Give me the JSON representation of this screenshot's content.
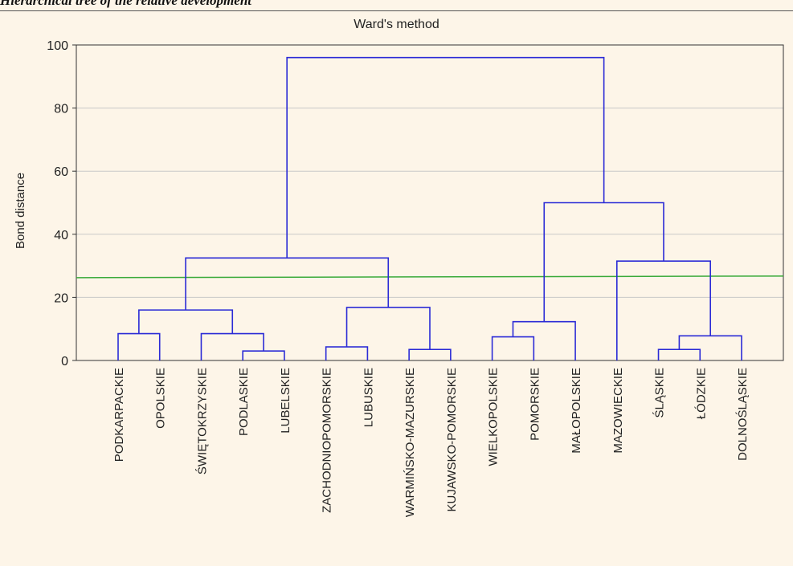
{
  "caption": "Hierarchical tree of the relative development",
  "chart_data": {
    "type": "dendrogram",
    "title": "Ward's method",
    "xlabel": "",
    "ylabel": "Bond distance",
    "ylim": [
      0,
      100
    ],
    "yticks": [
      0,
      20,
      40,
      60,
      80,
      100
    ],
    "grid": true,
    "cut_line": 26.5,
    "line_color": "#2b2bd6",
    "cut_color": "#3aaa3a",
    "leaves": [
      "PODKARPACKIE",
      "OPOLSKIE",
      "ŚWIĘTOKRZYSKIE",
      "PODLASKIE",
      "LUBELSKIE",
      "ZACHODNIOPOMORSKIE",
      "LUBUSKIE",
      "WARMIŃSKO-MAZURSKIE",
      "KUJAWSKO-POMORSKIE",
      "WIELKOPOLSKIE",
      "POMORSKIE",
      "MAŁOPOLSKIE",
      "MAZOWIECKIE",
      "ŚLĄSKIE",
      "ŁÓDZKIE",
      "DOLNOŚLĄSKIE"
    ],
    "merges": [
      {
        "left": "PODLASKIE",
        "right": "LUBELSKIE",
        "height": 3.0
      },
      {
        "left": "ŚLĄSKIE",
        "right": "ŁÓDZKIE",
        "height": 3.5
      },
      {
        "left": "WARMIŃSKO-MAZURSKIE",
        "right": "KUJAWSKO-POMORSKIE",
        "height": 3.5
      },
      {
        "left": "ZACHODNIOPOMORSKIE",
        "right": "LUBUSKIE",
        "height": 4.3
      },
      {
        "left": "WIELKOPOLSKIE",
        "right": "POMORSKIE",
        "height": 7.5
      },
      {
        "left": "ŚLĄSKIE+ŁÓDZKIE",
        "right": "DOLNOŚLĄSKIE",
        "height": 7.8
      },
      {
        "left": "ŚWIĘTOKRZYSKIE",
        "right": "PODLASKIE+LUBELSKIE",
        "height": 8.5
      },
      {
        "left": "PODKARPACKIE",
        "right": "OPOLSKIE",
        "height": 8.5
      },
      {
        "left": "WIELKOPOLSKIE+POMORSKIE",
        "right": "MAŁOPOLSKIE",
        "height": 12.3
      },
      {
        "left": "PODKARPACKIE+OPOLSKIE",
        "right": "ŚWIĘTOKRZYSKIE+PODLASKIE+LUBELSKIE",
        "height": 16.0
      },
      {
        "left": "ZACHODNIOPOMORSKIE+LUBUSKIE",
        "right": "WARMIŃSKO-MAZURSKIE+KUJAWSKO-POMORSKIE",
        "height": 16.8
      },
      {
        "left": "MAZOWIECKIE",
        "right": "ŚLĄSKIE+ŁÓDZKIE+DOLNOŚLĄSKIE",
        "height": 31.5
      },
      {
        "left": "PODKARPACKIE…LUBELSKIE",
        "right": "ZACHODNIOPOMORSKIE…KUJAWSKO-POMORSKIE",
        "height": 32.5
      },
      {
        "left": "WIELKOPOLSKIE+POMORSKIE+MAŁOPOLSKIE",
        "right": "MAZOWIECKIE…DOLNOŚLĄSKIE",
        "height": 50.0
      },
      {
        "left": "PODKARPACKIE…KUJAWSKO-POMORSKIE",
        "right": "WIELKOPOLSKIE…DOLNOŚLĄSKIE",
        "height": 96.0
      }
    ]
  }
}
